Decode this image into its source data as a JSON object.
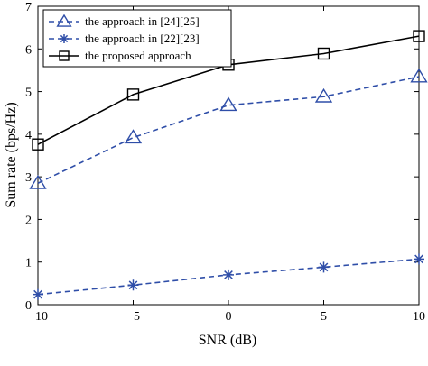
{
  "chart_data": {
    "type": "line",
    "title": "",
    "xlabel": "SNR (dB)",
    "ylabel": "Sum rate (bps/Hz)",
    "xlim": [
      -10,
      10
    ],
    "ylim": [
      0,
      7
    ],
    "xticks": [
      -10,
      -5,
      0,
      5,
      10
    ],
    "yticks": [
      0,
      1,
      2,
      3,
      4,
      5,
      6,
      7
    ],
    "xtick_labels": [
      "−10",
      "−5",
      "0",
      "5",
      "10"
    ],
    "ytick_labels": [
      "0",
      "1",
      "2",
      "3",
      "4",
      "5",
      "6",
      "7"
    ],
    "grid": false,
    "legend_position": "top-left",
    "x": [
      -10,
      -5,
      0,
      5,
      10
    ],
    "series": [
      {
        "name": "the approach in [24][25]",
        "values": [
          2.85,
          3.92,
          4.68,
          4.88,
          5.35
        ],
        "color": "#2f4ea8",
        "line_style": "dashed",
        "marker": "triangle"
      },
      {
        "name": "the approach in [22][23]",
        "values": [
          0.24,
          0.46,
          0.7,
          0.88,
          1.07
        ],
        "color": "#2f4ea8",
        "line_style": "dashed",
        "marker": "asterisk"
      },
      {
        "name": "the proposed approach",
        "values": [
          3.76,
          4.93,
          5.63,
          5.89,
          6.3
        ],
        "color": "#000000",
        "line_style": "solid",
        "marker": "square"
      }
    ]
  }
}
